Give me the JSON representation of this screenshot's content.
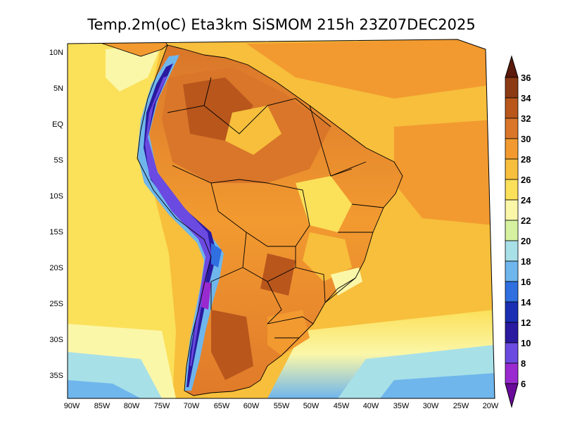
{
  "title": "Temp.2m(oC) Eta3km SiSMOM 215h 23Z07DEC2025",
  "lon_ticks": [
    "90W",
    "85W",
    "80W",
    "75W",
    "70W",
    "65W",
    "60W",
    "55W",
    "50W",
    "45W",
    "40W",
    "35W",
    "30W",
    "25W",
    "20W"
  ],
  "lat_ticks": [
    "10N",
    "5N",
    "EQ",
    "5S",
    "10S",
    "15S",
    "20S",
    "25S",
    "30S",
    "35S"
  ],
  "colorbar": {
    "levels": [
      "36",
      "34",
      "32",
      "30",
      "28",
      "26",
      "24",
      "22",
      "20",
      "18",
      "16",
      "14",
      "12",
      "10",
      "8",
      "6"
    ],
    "colors": [
      "#5a1a0c",
      "#8b3a14",
      "#b8561c",
      "#d9762a",
      "#f29a30",
      "#f7bf3c",
      "#fbe05a",
      "#fbf7a8",
      "#d6f2a0",
      "#a8e0e8",
      "#6fb6ec",
      "#2f6fe0",
      "#1a2fb4",
      "#2a1aa0",
      "#6a4ae0",
      "#9a2ad0",
      "#6a0a9a"
    ]
  }
}
